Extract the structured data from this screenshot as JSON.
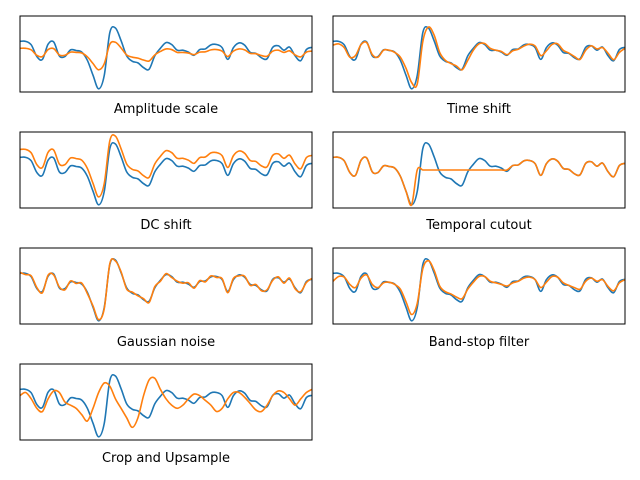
{
  "figure": {
    "colors": {
      "original": "#1f77b4",
      "augmented": "#ff7f0e",
      "frame": "#000000",
      "background": "#ffffff"
    }
  },
  "chart_data": [
    {
      "type": "line",
      "title": "Amplitude scale",
      "xlim": [
        0,
        250
      ],
      "ylim": [
        -1.2,
        1.2
      ],
      "grid": false,
      "series": [
        {
          "values": [
            0.4,
            0.4,
            0.29,
            -0.08,
            -0.17,
            0.31,
            0.38,
            -0.06,
            -0.08,
            0.13,
            0.11,
            0.06,
            -0.2,
            -0.67,
            -1.1,
            -0.68,
            0.68,
            0.82,
            0.42,
            -0.06,
            -0.23,
            -0.28,
            -0.43,
            -0.48,
            -0.06,
            0.18,
            0.36,
            0.3,
            0.12,
            0.12,
            0.06,
            -0.04,
            0.14,
            0.16,
            0.29,
            0.3,
            0.2,
            -0.17,
            0.2,
            0.35,
            0.28,
            0.05,
            0.02,
            -0.12,
            -0.15,
            0.21,
            0.26,
            0.12,
            0.22,
            -0.06,
            -0.21,
            0.14,
            0.21
          ]
        },
        {
          "values": [
            0.18,
            0.18,
            0.13,
            -0.04,
            -0.08,
            0.14,
            0.17,
            -0.03,
            -0.04,
            0.06,
            0.05,
            0.03,
            -0.09,
            -0.3,
            -0.5,
            -0.31,
            0.31,
            0.37,
            0.19,
            -0.03,
            -0.1,
            -0.13,
            -0.19,
            -0.22,
            -0.03,
            0.08,
            0.16,
            0.14,
            0.05,
            0.05,
            0.03,
            -0.02,
            0.06,
            0.07,
            0.13,
            0.14,
            0.09,
            -0.08,
            0.09,
            0.16,
            0.13,
            0.02,
            0.01,
            -0.05,
            -0.07,
            0.09,
            0.12,
            0.05,
            0.1,
            -0.03,
            -0.09,
            0.06,
            0.09
          ]
        }
      ]
    },
    {
      "type": "line",
      "title": "Time shift",
      "xlim": [
        0,
        250
      ],
      "ylim": [
        -1.2,
        1.2
      ],
      "grid": false,
      "series": [
        {
          "values": [
            0.4,
            0.4,
            0.29,
            -0.08,
            -0.17,
            0.31,
            0.38,
            -0.06,
            -0.08,
            0.13,
            0.11,
            0.06,
            -0.2,
            -0.67,
            -1.1,
            -0.68,
            0.68,
            0.82,
            0.42,
            -0.06,
            -0.23,
            -0.28,
            -0.43,
            -0.48,
            -0.06,
            0.18,
            0.36,
            0.3,
            0.12,
            0.12,
            0.06,
            -0.04,
            0.14,
            0.16,
            0.29,
            0.3,
            0.2,
            -0.17,
            0.2,
            0.35,
            0.28,
            0.05,
            0.02,
            -0.12,
            -0.15,
            0.21,
            0.26,
            0.12,
            0.22,
            -0.06,
            -0.21,
            0.14,
            0.21
          ]
        },
        {
          "values": [
            0.28,
            0.32,
            0.2,
            -0.1,
            -0.05,
            0.3,
            0.36,
            -0.02,
            -0.1,
            0.12,
            0.12,
            0.05,
            -0.1,
            -0.45,
            -0.9,
            -0.95,
            0.4,
            0.85,
            0.6,
            0.05,
            -0.2,
            -0.3,
            -0.38,
            -0.5,
            -0.2,
            0.12,
            0.32,
            0.33,
            0.18,
            0.12,
            0.08,
            -0.02,
            0.1,
            0.15,
            0.25,
            0.31,
            0.25,
            -0.05,
            0.1,
            0.3,
            0.32,
            0.12,
            0.03,
            -0.08,
            -0.17,
            0.12,
            0.26,
            0.16,
            0.2,
            0.02,
            -0.18,
            0.05,
            0.18
          ]
        }
      ]
    },
    {
      "type": "line",
      "title": "DC shift",
      "xlim": [
        0,
        250
      ],
      "ylim": [
        -1.2,
        1.2
      ],
      "grid": false,
      "series": [
        {
          "values": [
            0.4,
            0.4,
            0.29,
            -0.08,
            -0.17,
            0.31,
            0.38,
            -0.06,
            -0.08,
            0.13,
            0.11,
            0.06,
            -0.2,
            -0.67,
            -1.1,
            -0.68,
            0.68,
            0.82,
            0.42,
            -0.06,
            -0.23,
            -0.28,
            -0.43,
            -0.48,
            -0.06,
            0.18,
            0.36,
            0.3,
            0.12,
            0.12,
            0.06,
            -0.04,
            0.14,
            0.16,
            0.29,
            0.3,
            0.2,
            -0.17,
            0.2,
            0.35,
            0.28,
            0.05,
            0.02,
            -0.12,
            -0.15,
            0.21,
            0.26,
            0.12,
            0.22,
            -0.06,
            -0.21,
            0.14,
            0.21
          ]
        },
        {
          "values": [
            0.65,
            0.65,
            0.54,
            0.17,
            0.08,
            0.56,
            0.63,
            0.19,
            0.17,
            0.38,
            0.36,
            0.31,
            0.05,
            -0.42,
            -0.85,
            -0.43,
            0.93,
            1.07,
            0.67,
            0.19,
            0.02,
            -0.03,
            -0.18,
            -0.23,
            0.19,
            0.43,
            0.61,
            0.55,
            0.37,
            0.37,
            0.31,
            0.21,
            0.39,
            0.41,
            0.54,
            0.55,
            0.45,
            0.08,
            0.45,
            0.6,
            0.53,
            0.3,
            0.27,
            0.13,
            0.1,
            0.46,
            0.51,
            0.37,
            0.47,
            0.19,
            0.04,
            0.39,
            0.46
          ]
        }
      ]
    },
    {
      "type": "line",
      "title": "Temporal cutout",
      "xlim": [
        0,
        250
      ],
      "ylim": [
        -1.2,
        1.2
      ],
      "grid": false,
      "series": [
        {
          "values": [
            0.4,
            0.4,
            0.29,
            -0.08,
            -0.17,
            0.31,
            0.38,
            -0.06,
            -0.08,
            0.13,
            0.11,
            0.06,
            -0.2,
            -0.67,
            -1.1,
            -0.68,
            0.68,
            0.82,
            0.42,
            -0.06,
            -0.23,
            -0.28,
            -0.43,
            -0.48,
            -0.06,
            0.18,
            0.36,
            0.3,
            0.12,
            0.12,
            0.06,
            -0.04,
            0.14,
            0.16,
            0.29,
            0.3,
            0.2,
            -0.17,
            0.2,
            0.35,
            0.28,
            0.05,
            0.02,
            -0.12,
            -0.15,
            0.21,
            0.26,
            0.12,
            0.22,
            -0.06,
            -0.21,
            0.14,
            0.21
          ]
        },
        {
          "values": [
            0.4,
            0.4,
            0.29,
            -0.08,
            -0.17,
            0.31,
            0.38,
            -0.06,
            -0.08,
            0.13,
            0.11,
            0.06,
            -0.2,
            -0.67,
            -1.1,
            0.0,
            0.0,
            0.0,
            0.0,
            0.0,
            0.0,
            0.0,
            0.0,
            0.0,
            0.0,
            0.0,
            0.0,
            0.0,
            0.0,
            0.0,
            0.0,
            0.0,
            0.14,
            0.16,
            0.29,
            0.3,
            0.2,
            -0.17,
            0.2,
            0.35,
            0.28,
            0.05,
            0.02,
            -0.12,
            -0.15,
            0.21,
            0.26,
            0.12,
            0.22,
            -0.06,
            -0.21,
            0.14,
            0.21
          ]
        }
      ]
    },
    {
      "type": "line",
      "title": "Gaussian noise",
      "xlim": [
        0,
        250
      ],
      "ylim": [
        -1.2,
        1.2
      ],
      "grid": false,
      "series": [
        {
          "values": [
            0.4,
            0.4,
            0.29,
            -0.08,
            -0.17,
            0.31,
            0.38,
            -0.06,
            -0.08,
            0.13,
            0.11,
            0.06,
            -0.2,
            -0.67,
            -1.1,
            -0.68,
            0.68,
            0.82,
            0.42,
            -0.06,
            -0.23,
            -0.28,
            -0.43,
            -0.48,
            -0.06,
            0.18,
            0.36,
            0.3,
            0.12,
            0.12,
            0.06,
            -0.04,
            0.14,
            0.16,
            0.29,
            0.3,
            0.2,
            -0.17,
            0.2,
            0.35,
            0.28,
            0.05,
            0.02,
            -0.12,
            -0.15,
            0.21,
            0.26,
            0.12,
            0.22,
            -0.06,
            -0.21,
            0.14,
            0.21
          ]
        },
        {
          "values": [
            0.43,
            0.36,
            0.32,
            -0.05,
            -0.21,
            0.34,
            0.35,
            -0.03,
            -0.12,
            0.16,
            0.08,
            0.09,
            -0.24,
            -0.63,
            -1.06,
            -0.72,
            0.71,
            0.79,
            0.45,
            -0.1,
            -0.19,
            -0.31,
            -0.4,
            -0.52,
            -0.02,
            0.15,
            0.39,
            0.27,
            0.15,
            0.09,
            0.1,
            -0.07,
            0.17,
            0.13,
            0.32,
            0.27,
            0.23,
            -0.21,
            0.24,
            0.32,
            0.31,
            0.02,
            0.05,
            -0.15,
            -0.12,
            0.18,
            0.29,
            0.09,
            0.25,
            -0.09,
            -0.18,
            0.11,
            0.24
          ]
        }
      ]
    },
    {
      "type": "line",
      "title": "Band-stop filter",
      "xlim": [
        0,
        250
      ],
      "ylim": [
        -1.2,
        1.2
      ],
      "grid": false,
      "series": [
        {
          "values": [
            0.4,
            0.4,
            0.29,
            -0.08,
            -0.17,
            0.31,
            0.38,
            -0.06,
            -0.08,
            0.13,
            0.11,
            0.06,
            -0.2,
            -0.67,
            -1.1,
            -0.68,
            0.68,
            0.82,
            0.42,
            -0.06,
            -0.23,
            -0.28,
            -0.43,
            -0.48,
            -0.06,
            0.18,
            0.36,
            0.3,
            0.12,
            0.12,
            0.06,
            -0.04,
            0.14,
            0.16,
            0.29,
            0.3,
            0.2,
            -0.17,
            0.2,
            0.35,
            0.28,
            0.05,
            0.02,
            -0.12,
            -0.15,
            0.21,
            0.26,
            0.12,
            0.22,
            -0.06,
            -0.21,
            0.14,
            0.21
          ]
        },
        {
          "values": [
            0.15,
            0.3,
            0.28,
            0.05,
            -0.05,
            0.25,
            0.35,
            0.05,
            -0.05,
            0.1,
            0.12,
            0.05,
            -0.1,
            -0.5,
            -0.9,
            -0.55,
            0.55,
            0.8,
            0.5,
            0.0,
            -0.18,
            -0.25,
            -0.35,
            -0.4,
            -0.1,
            0.12,
            0.3,
            0.3,
            0.15,
            0.1,
            0.05,
            0.0,
            0.1,
            0.15,
            0.25,
            0.28,
            0.2,
            -0.05,
            0.12,
            0.3,
            0.28,
            0.1,
            0.02,
            -0.05,
            -0.1,
            0.15,
            0.25,
            0.15,
            0.2,
            -0.02,
            -0.15,
            0.1,
            0.2
          ]
        }
      ]
    },
    {
      "type": "line",
      "title": "Crop and Upsample",
      "xlim": [
        0,
        250
      ],
      "ylim": [
        -1.2,
        1.2
      ],
      "grid": false,
      "series": [
        {
          "values": [
            0.4,
            0.4,
            0.29,
            -0.08,
            -0.17,
            0.31,
            0.38,
            -0.06,
            -0.08,
            0.13,
            0.11,
            0.06,
            -0.2,
            -0.67,
            -1.1,
            -0.68,
            0.68,
            0.82,
            0.42,
            -0.06,
            -0.23,
            -0.28,
            -0.43,
            -0.48,
            -0.06,
            0.18,
            0.36,
            0.3,
            0.12,
            0.12,
            0.06,
            -0.04,
            0.14,
            0.16,
            0.29,
            0.3,
            0.2,
            -0.17,
            0.2,
            0.35,
            0.28,
            0.05,
            0.02,
            -0.12,
            -0.15,
            0.21,
            0.26,
            0.12,
            0.22,
            -0.06,
            -0.21,
            0.14,
            0.21
          ]
        },
        {
          "values": [
            0.2,
            0.3,
            0.1,
            -0.2,
            -0.3,
            0.1,
            0.35,
            0.3,
            0.0,
            -0.1,
            -0.2,
            -0.4,
            -0.6,
            -0.2,
            0.3,
            0.6,
            0.5,
            0.1,
            -0.2,
            -0.5,
            -0.8,
            -0.5,
            0.2,
            0.7,
            0.75,
            0.4,
            0.1,
            -0.1,
            -0.2,
            -0.1,
            0.1,
            0.25,
            0.2,
            0.05,
            -0.1,
            -0.3,
            -0.2,
            0.1,
            0.3,
            0.3,
            0.15,
            -0.05,
            -0.25,
            -0.3,
            -0.1,
            0.2,
            0.35,
            0.3,
            0.1,
            -0.1,
            0.1,
            0.3,
            0.4
          ]
        }
      ]
    }
  ]
}
